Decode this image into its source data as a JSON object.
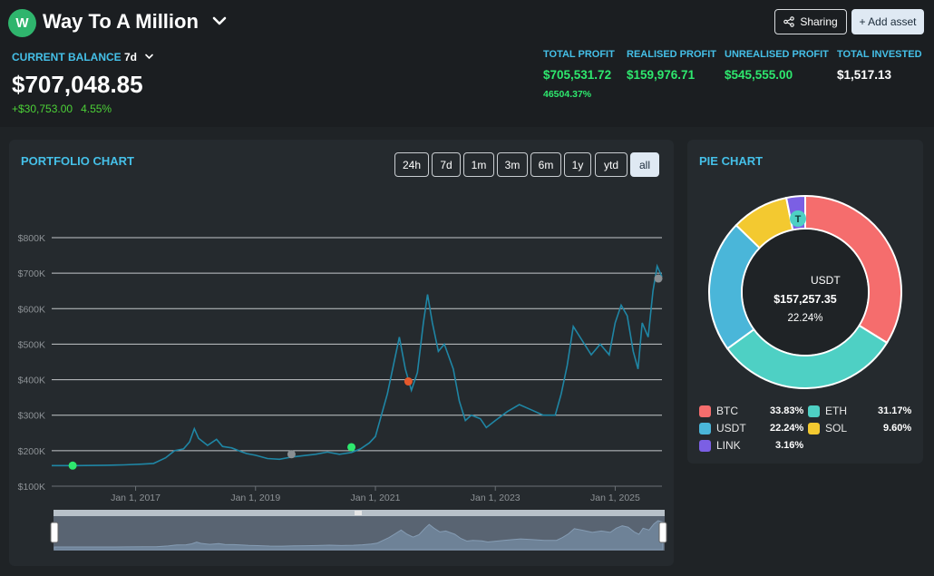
{
  "portfolio": {
    "avatar_letter": "W",
    "title": "Way To A Million"
  },
  "header_buttons": {
    "sharing": "Sharing",
    "add_asset": "+ Add asset"
  },
  "balance": {
    "label": "CURRENT BALANCE",
    "period": "7d",
    "value": "$707,048.85",
    "change_amount": "+$30,753.00",
    "change_percent": "4.55%"
  },
  "stats": [
    {
      "title": "TOTAL PROFIT",
      "value": "$705,531.72",
      "color": "#2ee86e"
    },
    {
      "title": "REALISED PROFIT",
      "value": "$159,976.71",
      "color": "#2ee86e"
    },
    {
      "title": "UNREALISED PROFIT",
      "value": "$545,555.00",
      "color": "#2ee86e"
    },
    {
      "title": "TOTAL INVESTED",
      "value": "$1,517.13",
      "color": "#ffffff"
    }
  ],
  "total_profit_percent": "46504.37%",
  "portfolio_chart": {
    "title": "PORTFOLIO CHART",
    "ranges": [
      "24h",
      "7d",
      "1m",
      "3m",
      "6m",
      "1y",
      "ytd",
      "all"
    ],
    "active_range": "all"
  },
  "chart_data": {
    "type": "line",
    "y_ticks": [
      "$100K",
      "$200K",
      "$300K",
      "$400K",
      "$500K",
      "$600K",
      "$700K",
      "$800K"
    ],
    "x_ticks": [
      "Jan 1, 2017",
      "Jan 1, 2019",
      "Jan 1, 2021",
      "Jan 1, 2023",
      "Jan 1, 2025"
    ],
    "ylim": [
      100000,
      800000
    ],
    "xlim": [
      2015.6,
      2025.78
    ],
    "line_color": "#1f86a5",
    "points": [
      [
        2015.6,
        158000
      ],
      [
        2016.0,
        158000
      ],
      [
        2016.5,
        159000
      ],
      [
        2016.8,
        160000
      ],
      [
        2017.1,
        162000
      ],
      [
        2017.3,
        164000
      ],
      [
        2017.5,
        180000
      ],
      [
        2017.65,
        200000
      ],
      [
        2017.8,
        205000
      ],
      [
        2017.9,
        225000
      ],
      [
        2017.98,
        262000
      ],
      [
        2018.05,
        235000
      ],
      [
        2018.2,
        215000
      ],
      [
        2018.35,
        232000
      ],
      [
        2018.45,
        212000
      ],
      [
        2018.6,
        208000
      ],
      [
        2018.75,
        198000
      ],
      [
        2018.85,
        192000
      ],
      [
        2019.0,
        187000
      ],
      [
        2019.2,
        178000
      ],
      [
        2019.4,
        176000
      ],
      [
        2019.6,
        182000
      ],
      [
        2019.8,
        186000
      ],
      [
        2020.0,
        190000
      ],
      [
        2020.2,
        196000
      ],
      [
        2020.4,
        190000
      ],
      [
        2020.6,
        195000
      ],
      [
        2020.75,
        205000
      ],
      [
        2020.9,
        222000
      ],
      [
        2021.0,
        240000
      ],
      [
        2021.1,
        300000
      ],
      [
        2021.2,
        360000
      ],
      [
        2021.3,
        440000
      ],
      [
        2021.4,
        520000
      ],
      [
        2021.5,
        430000
      ],
      [
        2021.6,
        370000
      ],
      [
        2021.7,
        420000
      ],
      [
        2021.8,
        560000
      ],
      [
        2021.87,
        640000
      ],
      [
        2021.95,
        560000
      ],
      [
        2022.05,
        480000
      ],
      [
        2022.15,
        500000
      ],
      [
        2022.3,
        430000
      ],
      [
        2022.4,
        340000
      ],
      [
        2022.5,
        285000
      ],
      [
        2022.6,
        300000
      ],
      [
        2022.75,
        290000
      ],
      [
        2022.85,
        265000
      ],
      [
        2023.0,
        285000
      ],
      [
        2023.2,
        310000
      ],
      [
        2023.4,
        330000
      ],
      [
        2023.6,
        315000
      ],
      [
        2023.8,
        300000
      ],
      [
        2024.0,
        300000
      ],
      [
        2024.1,
        360000
      ],
      [
        2024.2,
        440000
      ],
      [
        2024.3,
        550000
      ],
      [
        2024.45,
        510000
      ],
      [
        2024.6,
        470000
      ],
      [
        2024.75,
        500000
      ],
      [
        2024.9,
        470000
      ],
      [
        2025.0,
        560000
      ],
      [
        2025.1,
        610000
      ],
      [
        2025.2,
        580000
      ],
      [
        2025.3,
        480000
      ],
      [
        2025.38,
        430000
      ],
      [
        2025.45,
        560000
      ],
      [
        2025.55,
        520000
      ],
      [
        2025.63,
        650000
      ],
      [
        2025.7,
        720000
      ],
      [
        2025.78,
        690000
      ]
    ],
    "markers": [
      {
        "x": 2015.95,
        "y": 158000,
        "color": "#2ee86e"
      },
      {
        "x": 2019.6,
        "y": 190000,
        "color": "#8a8f93"
      },
      {
        "x": 2020.6,
        "y": 210000,
        "color": "#2ee86e"
      },
      {
        "x": 2021.55,
        "y": 395000,
        "color": "#e5582b"
      },
      {
        "x": 2025.72,
        "y": 685000,
        "color": "#8a8f93"
      }
    ]
  },
  "pie_chart": {
    "title": "PIE CHART",
    "center_symbol": "T",
    "center_asset": "USDT",
    "center_value": "$157,257.35",
    "center_percent": "22.24%",
    "slices": [
      {
        "name": "BTC",
        "percent": "33.83%",
        "value": 33.83,
        "color": "#f56d6d"
      },
      {
        "name": "ETH",
        "percent": "31.17%",
        "value": 31.17,
        "color": "#4ed0c4"
      },
      {
        "name": "USDT",
        "percent": "22.24%",
        "value": 22.24,
        "color": "#4ab6d9"
      },
      {
        "name": "SOL",
        "percent": "9.60%",
        "value": 9.6,
        "color": "#f3c930"
      },
      {
        "name": "LINK",
        "percent": "3.16%",
        "value": 3.16,
        "color": "#7b5fe4"
      }
    ]
  }
}
